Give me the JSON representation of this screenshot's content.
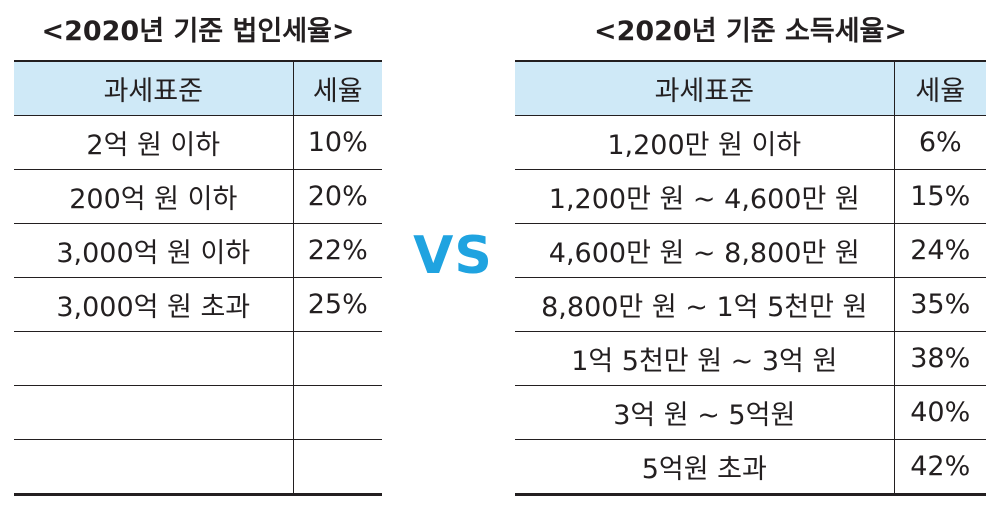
{
  "corporate": {
    "title": "<2020년 기준 법인세율>",
    "headers": [
      "과세표준",
      "세율"
    ],
    "rows": [
      [
        "2억 원 이하",
        "10%"
      ],
      [
        "200억 원 이하",
        "20%"
      ],
      [
        "3,000억 원 이하",
        "22%"
      ],
      [
        "3,000억 원 초과",
        "25%"
      ],
      [
        "",
        ""
      ],
      [
        "",
        ""
      ],
      [
        "",
        ""
      ]
    ]
  },
  "vs_label": "VS",
  "income": {
    "title": "<2020년 기준 소득세율>",
    "headers": [
      "과세표준",
      "세율"
    ],
    "rows": [
      [
        "1,200만 원 이하",
        "6%"
      ],
      [
        "1,200만 원 ~ 4,600만 원",
        "15%"
      ],
      [
        "4,600만 원 ~ 8,800만 원",
        "24%"
      ],
      [
        "8,800만 원 ~ 1억 5천만 원",
        "35%"
      ],
      [
        "1억 5천만 원 ~ 3억 원",
        "38%"
      ],
      [
        "3억 원 ~ 5억원",
        "40%"
      ],
      [
        "5억원 초과",
        "42%"
      ]
    ]
  },
  "colors": {
    "header_bg": "#cfe9f7",
    "vs": "#1fa3e0",
    "text": "#231f20"
  }
}
